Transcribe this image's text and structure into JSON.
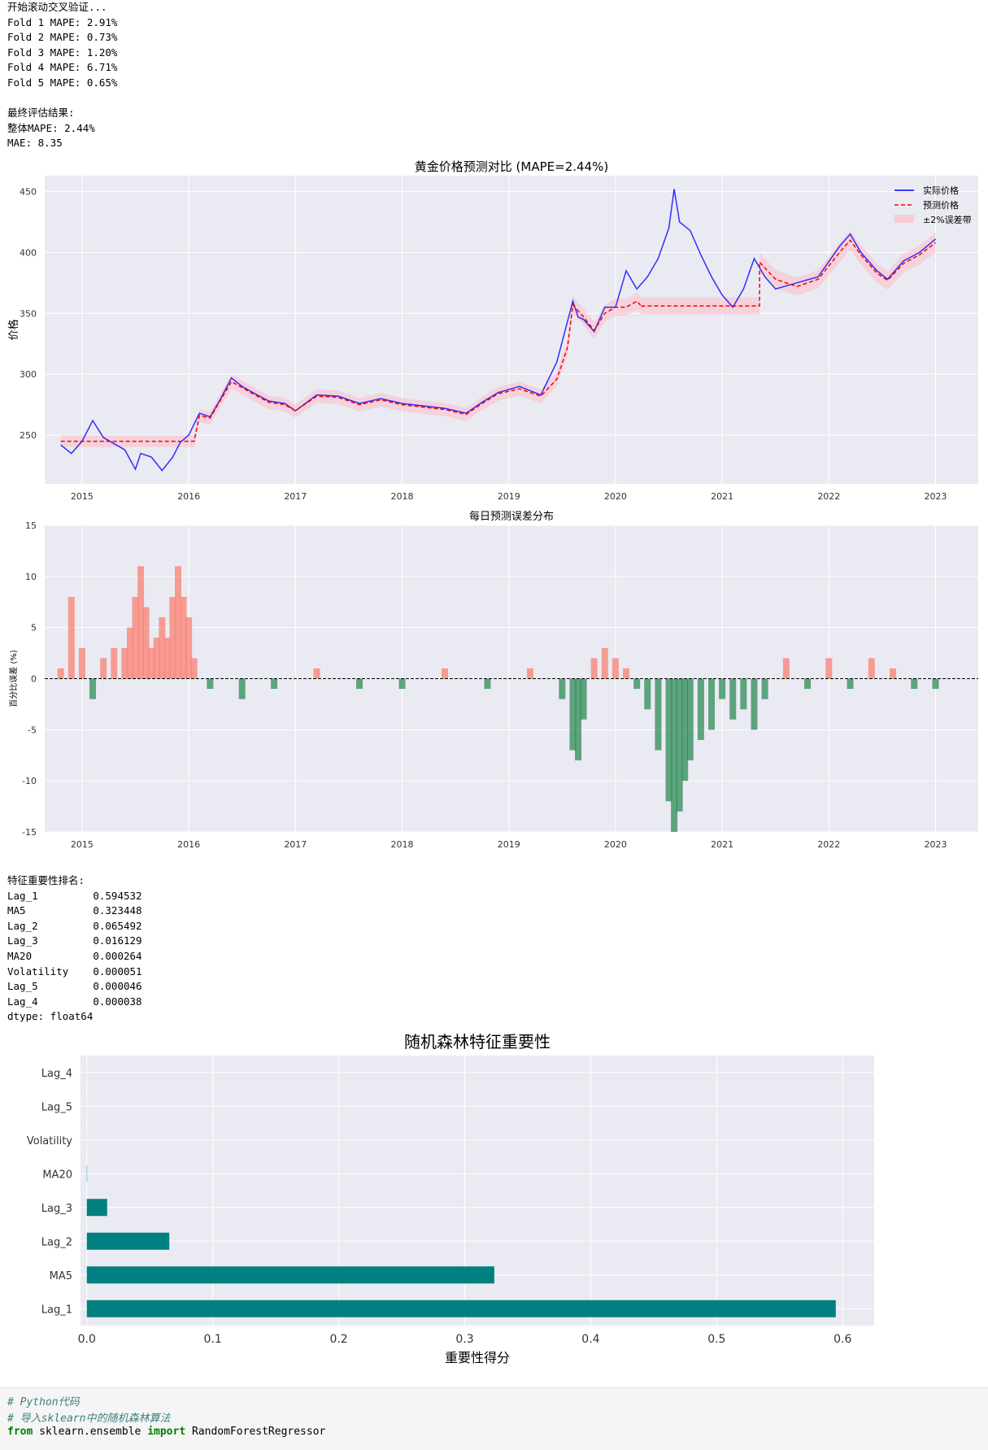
{
  "output1": {
    "lines": [
      "开始滚动交叉验证...",
      "Fold 1 MAPE: 2.91%",
      "Fold 2 MAPE: 0.73%",
      "Fold 3 MAPE: 1.20%",
      "Fold 4 MAPE: 6.71%",
      "Fold 5 MAPE: 0.65%",
      "",
      "最终评估结果:",
      "整体MAPE: 2.44%",
      "MAE: 8.35"
    ]
  },
  "output2": {
    "lines": [
      "特征重要性排名:",
      "Lag_1         0.594532",
      "MA5           0.323448",
      "Lag_2         0.065492",
      "Lag_3         0.016129",
      "MA20          0.000264",
      "Volatility    0.000051",
      "Lag_5         0.000046",
      "Lag_4         0.000038",
      "dtype: float64"
    ]
  },
  "chart_data": [
    {
      "type": "line",
      "title": "黄金价格预测对比 (MAPE=2.44%)",
      "xlabel": "",
      "ylabel": "价格",
      "xticks": [
        "2015",
        "2016",
        "2017",
        "2018",
        "2019",
        "2020",
        "2021",
        "2022",
        "2023"
      ],
      "yticks": [
        250,
        300,
        350,
        400,
        450
      ],
      "xlim": [
        2014.65,
        2023.4
      ],
      "ylim": [
        210,
        463
      ],
      "legend_position": "top-right",
      "legend": [
        "实际价格",
        "预测价格",
        "±2%误差带"
      ],
      "colors": {
        "actual": "#0000ff",
        "predicted": "#ff0000",
        "band": "#ffb6c1"
      },
      "series": [
        {
          "name": "实际价格",
          "x": [
            2014.8,
            2014.9,
            2015.0,
            2015.1,
            2015.2,
            2015.3,
            2015.4,
            2015.5,
            2015.55,
            2015.65,
            2015.75,
            2015.85,
            2015.92,
            2016.0,
            2016.1,
            2016.2,
            2016.3,
            2016.4,
            2016.5,
            2016.6,
            2016.75,
            2016.9,
            2017.0,
            2017.2,
            2017.4,
            2017.6,
            2017.8,
            2018.0,
            2018.2,
            2018.4,
            2018.6,
            2018.75,
            2018.9,
            2019.1,
            2019.3,
            2019.45,
            2019.6,
            2019.65,
            2019.7,
            2019.8,
            2019.9,
            2020.0,
            2020.1,
            2020.2,
            2020.3,
            2020.4,
            2020.5,
            2020.55,
            2020.6,
            2020.7,
            2020.8,
            2020.9,
            2021.0,
            2021.1,
            2021.2,
            2021.3,
            2021.4,
            2021.5,
            2021.7,
            2021.9,
            2022.1,
            2022.2,
            2022.3,
            2022.45,
            2022.55,
            2022.7,
            2022.85,
            2023.0
          ],
          "values": [
            242,
            235,
            245,
            262,
            248,
            243,
            238,
            222,
            235,
            232,
            221,
            232,
            244,
            250,
            268,
            265,
            280,
            297,
            290,
            285,
            278,
            276,
            270,
            283,
            282,
            276,
            280,
            276,
            274,
            272,
            268,
            277,
            285,
            290,
            283,
            310,
            360,
            347,
            345,
            335,
            355,
            355,
            385,
            370,
            380,
            395,
            420,
            452,
            425,
            418,
            398,
            380,
            365,
            355,
            370,
            395,
            380,
            370,
            375,
            380,
            405,
            415,
            400,
            385,
            378,
            393,
            400,
            411
          ]
        },
        {
          "name": "预测价格",
          "x": [
            2014.8,
            2015.0,
            2015.1,
            2015.2,
            2015.3,
            2015.4,
            2015.5,
            2015.6,
            2015.7,
            2015.8,
            2015.9,
            2016.0,
            2016.05,
            2016.1,
            2016.2,
            2016.3,
            2016.4,
            2016.5,
            2016.6,
            2016.75,
            2016.9,
            2017.0,
            2017.2,
            2017.4,
            2017.6,
            2017.8,
            2018.0,
            2018.2,
            2018.4,
            2018.6,
            2018.75,
            2018.9,
            2019.1,
            2019.3,
            2019.45,
            2019.55,
            2019.6,
            2019.7,
            2019.8,
            2019.9,
            2020.0,
            2020.1,
            2020.2,
            2020.25,
            2020.25,
            2021.35,
            2021.35,
            2021.5,
            2021.7,
            2021.9,
            2022.1,
            2022.2,
            2022.3,
            2022.45,
            2022.55,
            2022.7,
            2022.85,
            2023.0
          ],
          "values": [
            245,
            245,
            245,
            245,
            245,
            245,
            245,
            245,
            245,
            245,
            245,
            245,
            245,
            266,
            264,
            279,
            294,
            289,
            284,
            277,
            275,
            270,
            282,
            281,
            275,
            279,
            275,
            273,
            271,
            267,
            276,
            284,
            288,
            282,
            296,
            322,
            357,
            347,
            336,
            350,
            355,
            355,
            360,
            355,
            356,
            356,
            392,
            378,
            372,
            378,
            400,
            410,
            398,
            383,
            377,
            391,
            398,
            408
          ]
        }
      ]
    },
    {
      "type": "bar",
      "title": "每日预测误差分布",
      "xlabel": "",
      "ylabel": "百分比误差 (%)",
      "xticks": [
        "2015",
        "2016",
        "2017",
        "2018",
        "2019",
        "2020",
        "2021",
        "2022",
        "2023"
      ],
      "yticks": [
        -15,
        -10,
        -5,
        0,
        5,
        10,
        15
      ],
      "xlim": [
        2014.65,
        2023.4
      ],
      "ylim": [
        -15,
        15
      ],
      "colors": {
        "positive": "#fa8072",
        "negative": "#2e8b57"
      },
      "series": [
        {
          "name": "",
          "x": [
            2014.8,
            2014.9,
            2015.0,
            2015.1,
            2015.2,
            2015.3,
            2015.4,
            2015.45,
            2015.5,
            2015.55,
            2015.6,
            2015.65,
            2015.7,
            2015.75,
            2015.8,
            2015.85,
            2015.9,
            2015.95,
            2016.0,
            2016.05,
            2016.2,
            2016.5,
            2016.8,
            2017.2,
            2017.6,
            2018.0,
            2018.4,
            2018.8,
            2019.2,
            2019.5,
            2019.6,
            2019.65,
            2019.7,
            2019.8,
            2019.9,
            2020.0,
            2020.1,
            2020.2,
            2020.3,
            2020.4,
            2020.5,
            2020.55,
            2020.6,
            2020.65,
            2020.7,
            2020.8,
            2020.9,
            2021.0,
            2021.1,
            2021.2,
            2021.3,
            2021.4,
            2021.6,
            2021.8,
            2022.0,
            2022.2,
            2022.4,
            2022.6,
            2022.8,
            2023.0
          ],
          "values": [
            1,
            8,
            3,
            -2,
            2,
            3,
            3,
            5,
            8,
            11,
            7,
            3,
            4,
            6,
            4,
            8,
            11,
            8,
            6,
            2,
            -1,
            -2,
            -1,
            1,
            -1,
            -1,
            1,
            -1,
            1,
            -2,
            -7,
            -8,
            -4,
            2,
            3,
            2,
            1,
            -1,
            -3,
            -7,
            -12,
            -15,
            -13,
            -10,
            -8,
            -6,
            -5,
            -2,
            -4,
            -3,
            -5,
            -2,
            2,
            -1,
            2,
            -1,
            2,
            1,
            -1,
            -1
          ]
        }
      ]
    },
    {
      "type": "bar",
      "orientation": "horizontal",
      "title": "随机森林特征重要性",
      "xlabel": "重要性得分",
      "ylabel": "",
      "xticks": [
        0.0,
        0.1,
        0.2,
        0.3,
        0.4,
        0.5,
        0.6
      ],
      "xlim": [
        -0.005,
        0.625
      ],
      "color": "#008080",
      "categories": [
        "Lag_4",
        "Lag_5",
        "Volatility",
        "MA20",
        "Lag_3",
        "Lag_2",
        "MA5",
        "Lag_1"
      ],
      "values": [
        3.8e-05,
        4.6e-05,
        5.1e-05,
        0.000264,
        0.016129,
        0.065492,
        0.323448,
        0.594532
      ]
    }
  ],
  "code": {
    "line1": "# Python代码",
    "line2": "# 导入sklearn中的随机森林算法",
    "line3_kw1": "from",
    "line3_mod": " sklearn.ensemble ",
    "line3_kw2": "import",
    "line3_name": " RandomForestRegressor"
  }
}
